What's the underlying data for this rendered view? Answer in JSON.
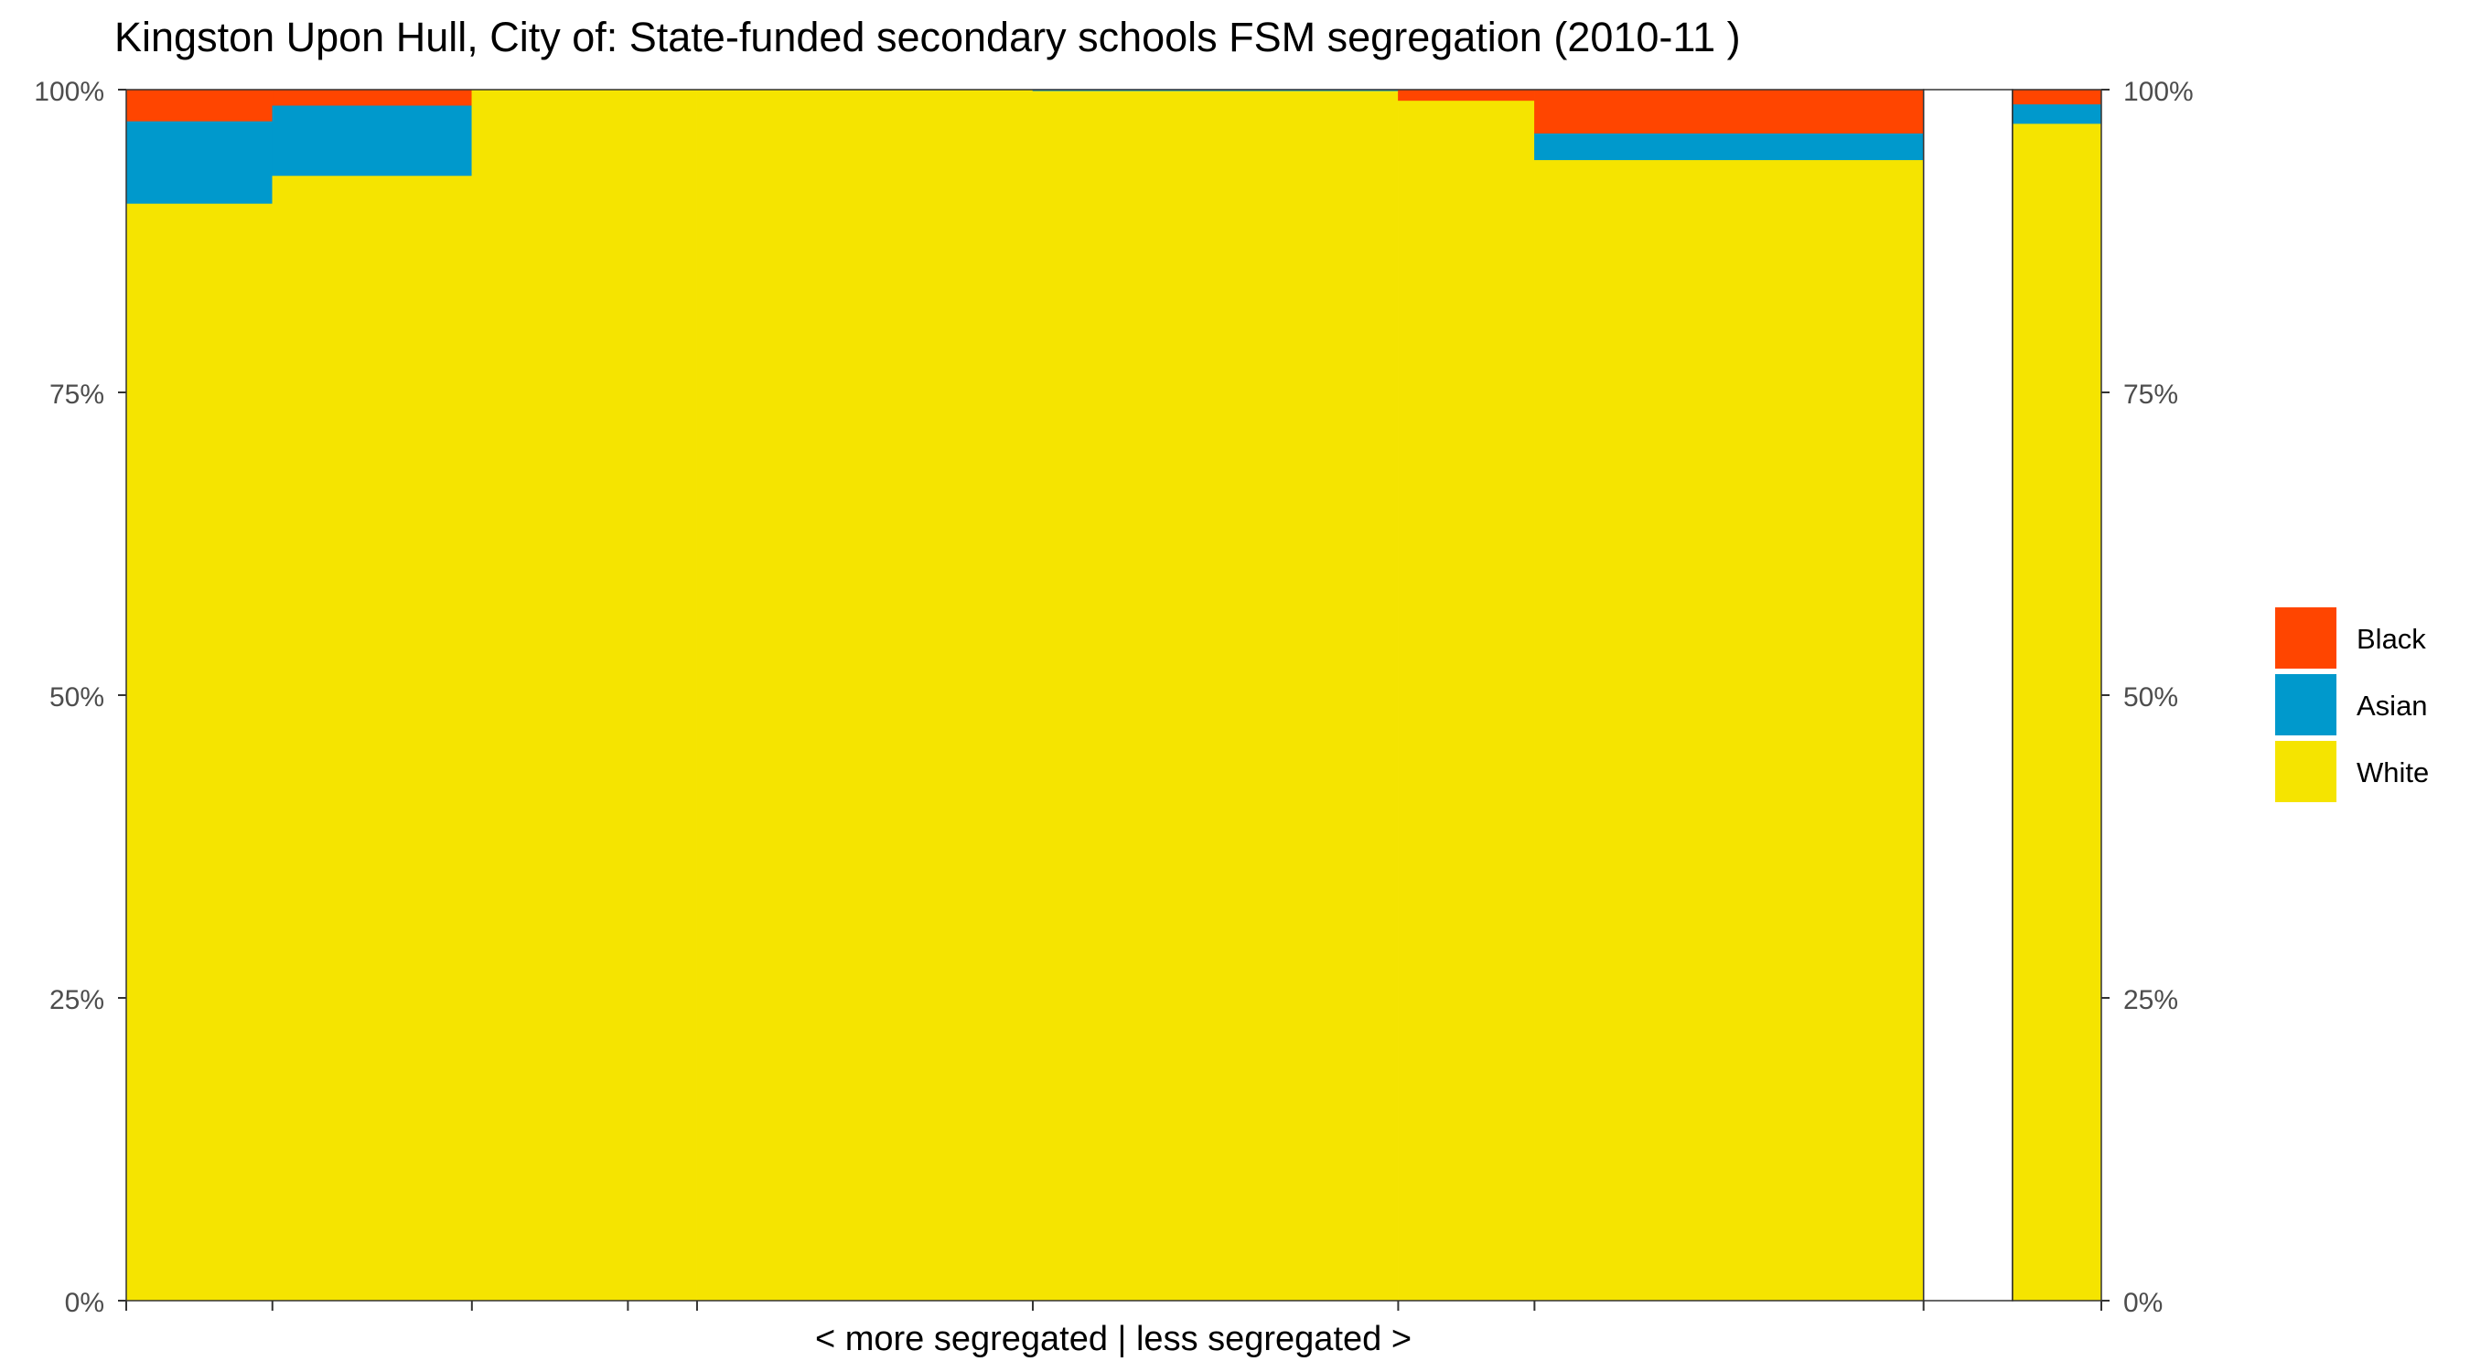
{
  "chart_data": {
    "type": "bar",
    "subtype": "stacked-percent-variable-width",
    "title": "Kingston Upon Hull, City of: State-funded secondary schools FSM segregation (2010-11 )",
    "xlabel": "< more segregated | less segregated >",
    "ylabel": "",
    "ylim": [
      0,
      1
    ],
    "y_ticks": [
      "0%",
      "25%",
      "50%",
      "75%",
      "100%"
    ],
    "y_ticks_right": [
      "0%",
      "25%",
      "50%",
      "75%",
      "100%"
    ],
    "legend_position": "right",
    "grid": false,
    "colors": {
      "Black": "#FF4500",
      "Asian": "#0099CC",
      "White": "#F5E400"
    },
    "series": [
      {
        "name": "Black"
      },
      {
        "name": "Asian"
      },
      {
        "name": "White"
      }
    ],
    "bars": [
      {
        "x_start": 0.0,
        "x_end": 0.074,
        "values": {
          "White": 0.906,
          "Asian": 0.068,
          "Black": 0.026
        }
      },
      {
        "x_start": 0.074,
        "x_end": 0.175,
        "values": {
          "White": 0.929,
          "Asian": 0.058,
          "Black": 0.013
        }
      },
      {
        "x_start": 0.175,
        "x_end": 0.254,
        "values": {
          "White": 1.0,
          "Asian": 0.0,
          "Black": 0.0
        }
      },
      {
        "x_start": 0.254,
        "x_end": 0.289,
        "values": {
          "White": 1.0,
          "Asian": 0.0,
          "Black": 0.0
        }
      },
      {
        "x_start": 0.289,
        "x_end": 0.459,
        "values": {
          "White": 1.0,
          "Asian": 0.0,
          "Black": 0.0
        }
      },
      {
        "x_start": 0.459,
        "x_end": 0.644,
        "values": {
          "White": 0.999,
          "Asian": 0.001,
          "Black": 0.0
        }
      },
      {
        "x_start": 0.644,
        "x_end": 0.713,
        "values": {
          "White": 0.991,
          "Asian": 0.0,
          "Black": 0.009
        }
      },
      {
        "x_start": 0.713,
        "x_end": 0.91,
        "values": {
          "White": 0.942,
          "Asian": 0.022,
          "Black": 0.036
        }
      },
      {
        "x_start": 0.955,
        "x_end": 1.0,
        "values": {
          "White": 0.972,
          "Asian": 0.016,
          "Black": 0.012
        }
      }
    ],
    "x_ticks": [
      0.0,
      0.074,
      0.175,
      0.254,
      0.289,
      0.459,
      0.644,
      0.713,
      0.91,
      1.0
    ],
    "empty_panel": [
      0.91,
      0.955
    ]
  }
}
